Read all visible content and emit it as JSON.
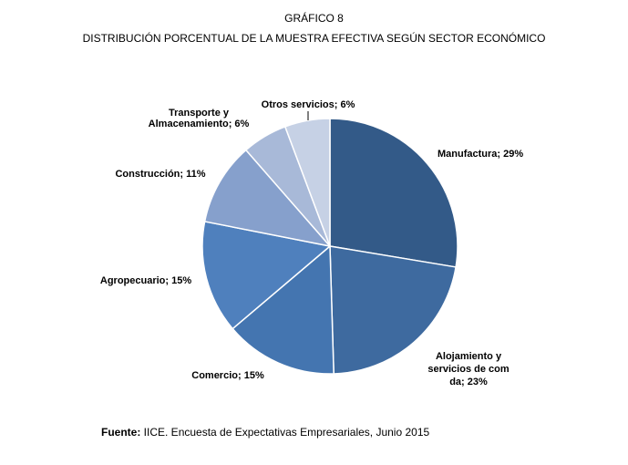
{
  "header": {
    "title": "GRÁFICO 8",
    "subtitle": "DISTRIBUCIÓN PORCENTUAL DE LA MUESTRA EFECTIVA SEGÚN SECTOR ECONÓMICO"
  },
  "chart_data": {
    "type": "pie",
    "title": "GRÁFICO 8",
    "subtitle": "DISTRIBUCIÓN PORCENTUAL DE LA MUESTRA EFECTIVA SEGÚN SECTOR ECONÓMICO",
    "slices": [
      {
        "label": "Manufactura; 29%",
        "value": 29,
        "color": "#335a88"
      },
      {
        "label": "Alojamiento y servicios de comida; 23%",
        "value": 23,
        "color": "#3e6a9f"
      },
      {
        "label": "Comercio; 15%",
        "value": 15,
        "color": "#4475b0"
      },
      {
        "label": "Agropecuario; 15%",
        "value": 15,
        "color": "#4f80bd"
      },
      {
        "label": "Construcción; 11%",
        "value": 11,
        "color": "#86a0cc"
      },
      {
        "label": "Transporte y Almacenamiento; 6%",
        "value": 6,
        "color": "#a8b9d8"
      },
      {
        "label": "Otros servicios; 6%",
        "value": 6,
        "color": "#c6d1e5"
      }
    ]
  },
  "footer": {
    "source_label": "Fuente:",
    "source_text": " IICE. Encuesta de Expectativas Empresariales, Junio 2015"
  }
}
